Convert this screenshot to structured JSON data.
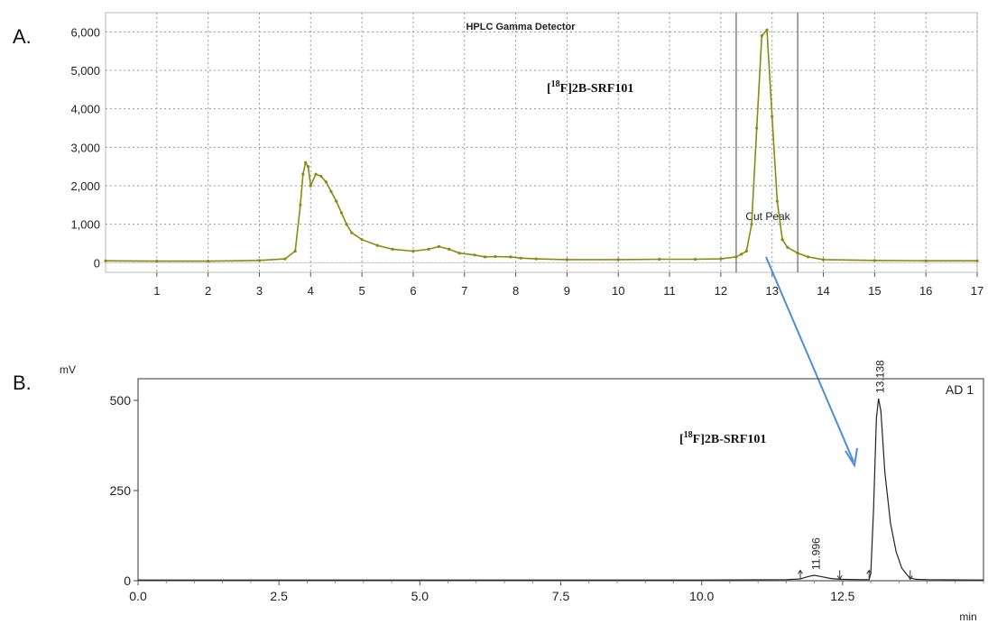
{
  "panel_labels": {
    "a": "A.",
    "b": "B."
  },
  "colors": {
    "trace_a": "#8a8a10",
    "trace_b": "#222222",
    "arrow": "#4a8fd6",
    "axis": "#555555"
  },
  "chart_data": [
    {
      "type": "line",
      "title": "HPLC Gamma Detector",
      "compound": {
        "prefix": "[",
        "sup": "18",
        "rest": "F]2B-SRF101"
      },
      "annotation": "Cut Peak",
      "xlabel": "",
      "ylabel": "",
      "xlim": [
        0,
        17
      ],
      "ylim": [
        -250,
        6500
      ],
      "x_ticks": [
        "1",
        "2",
        "3",
        "4",
        "5",
        "6",
        "7",
        "8",
        "9",
        "10",
        "11",
        "12",
        "13",
        "14",
        "15",
        "16",
        "17"
      ],
      "y_ticks": [
        {
          "value": 0,
          "label": "0"
        },
        {
          "value": 1000,
          "label": "1,000"
        },
        {
          "value": 2000,
          "label": "2,000"
        },
        {
          "value": 3000,
          "label": "3,000"
        },
        {
          "value": 4000,
          "label": "4,000"
        },
        {
          "value": 5000,
          "label": "5,000"
        },
        {
          "value": 6000,
          "label": "6,000"
        }
      ],
      "cut_window": [
        12.3,
        13.5
      ],
      "grid": true,
      "series": [
        {
          "x": [
            0,
            1,
            2,
            3,
            3.5,
            3.7,
            3.8,
            3.85,
            3.9,
            3.95,
            4.0,
            4.1,
            4.2,
            4.3,
            4.4,
            4.5,
            4.6,
            4.7,
            4.8,
            5.0,
            5.3,
            5.6,
            6.0,
            6.3,
            6.5,
            6.7,
            6.9,
            7.2,
            7.4,
            7.6,
            7.9,
            8.1,
            8.4,
            9.0,
            10.0,
            10.8,
            11.5,
            12.0,
            12.3,
            12.4,
            12.5,
            12.6,
            12.7,
            12.8,
            12.9,
            13.0,
            13.1,
            13.2,
            13.3,
            13.5,
            13.7,
            14.0,
            15.0,
            16.0,
            17.0
          ],
          "y": [
            50,
            40,
            40,
            60,
            100,
            300,
            1500,
            2300,
            2600,
            2500,
            2000,
            2300,
            2250,
            2100,
            1850,
            1600,
            1300,
            1000,
            780,
            600,
            450,
            350,
            300,
            350,
            420,
            350,
            250,
            200,
            150,
            160,
            150,
            120,
            100,
            80,
            80,
            90,
            90,
            100,
            150,
            220,
            300,
            1000,
            3500,
            5900,
            6050,
            3800,
            1600,
            600,
            400,
            250,
            150,
            80,
            60,
            50,
            50
          ]
        }
      ]
    },
    {
      "type": "line",
      "title": "",
      "compound": {
        "prefix": "[",
        "sup": "18",
        "rest": "F]2B-SRF101"
      },
      "channel_label": "AD 1",
      "xlabel": "min",
      "ylabel": "mV",
      "xlim": [
        0,
        15.0
      ],
      "ylim": [
        0,
        560
      ],
      "x_ticks": [
        {
          "value": 0,
          "label": "0.0"
        },
        {
          "value": 2.5,
          "label": "2.5"
        },
        {
          "value": 5.0,
          "label": "5.0"
        },
        {
          "value": 7.5,
          "label": "7.5"
        },
        {
          "value": 10.0,
          "label": "10.0"
        },
        {
          "value": 12.5,
          "label": "12.5"
        }
      ],
      "y_ticks": [
        {
          "value": 0,
          "label": "0"
        },
        {
          "value": 250,
          "label": "250"
        },
        {
          "value": 500,
          "label": "500"
        }
      ],
      "peaks": [
        {
          "rt": 11.996,
          "label": "11.996",
          "height": 15,
          "start": 11.75,
          "end": 12.45
        },
        {
          "rt": 13.138,
          "label": "13.138",
          "height": 505,
          "start": 12.97,
          "end": 13.7
        }
      ],
      "grid": false,
      "series": [
        {
          "x": [
            0,
            5,
            10,
            11.5,
            11.75,
            11.9,
            11.996,
            12.1,
            12.3,
            12.45,
            12.8,
            12.97,
            13.0,
            13.05,
            13.1,
            13.138,
            13.18,
            13.25,
            13.35,
            13.45,
            13.55,
            13.65,
            13.7,
            13.8,
            14.0,
            15.0
          ],
          "y": [
            2,
            2,
            2,
            3,
            5,
            12,
            15,
            12,
            6,
            4,
            3,
            3,
            20,
            200,
            450,
            505,
            470,
            300,
            160,
            80,
            35,
            15,
            8,
            4,
            3,
            2
          ]
        }
      ]
    }
  ]
}
